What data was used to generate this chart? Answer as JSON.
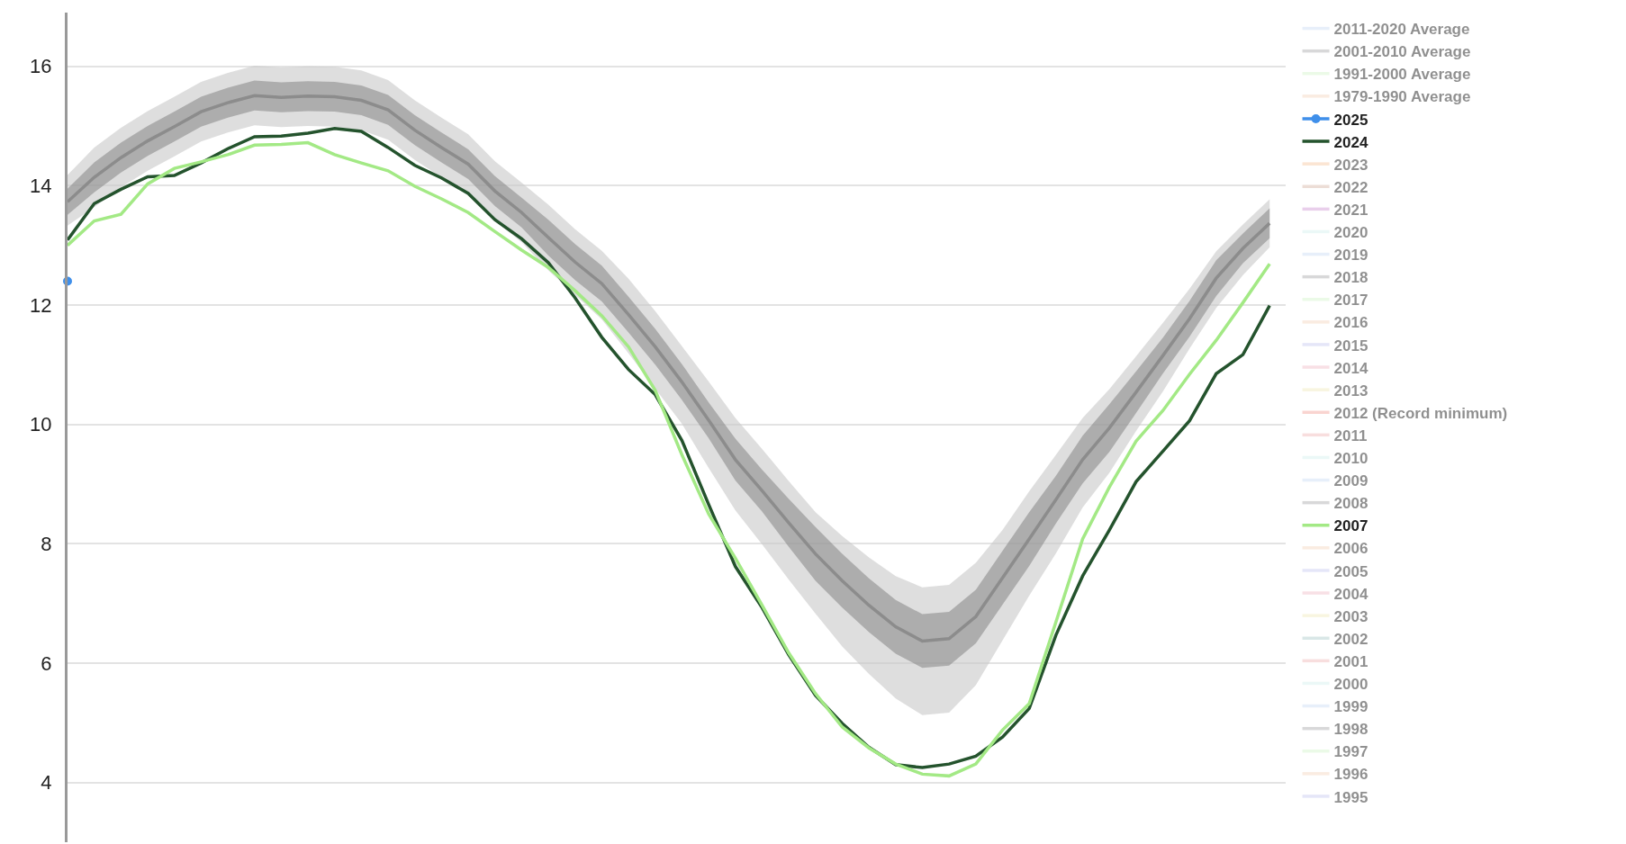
{
  "chart_data": {
    "type": "line",
    "categories": [
      null,
      null,
      null,
      null,
      null,
      null,
      null,
      null,
      null,
      null,
      null,
      null,
      null,
      null,
      null,
      null,
      null,
      null,
      null,
      null,
      null,
      null,
      null,
      null,
      null,
      null,
      null,
      null,
      null,
      null,
      null,
      null,
      null,
      null,
      null,
      null,
      null,
      null,
      null,
      null,
      null,
      null,
      null,
      null,
      null,
      null
    ],
    "ylim": [
      3,
      16.9
    ],
    "yticks": [
      4,
      6,
      8,
      10,
      12,
      14,
      16
    ],
    "tick_labels": "y",
    "grid": "y",
    "legend": "right",
    "series": [
      {
        "name": "2011-2020 Average",
        "color": "#cfe0f5",
        "values": [
          null,
          null,
          null,
          null,
          null,
          null,
          null,
          null,
          null,
          null,
          null,
          null,
          null,
          null,
          null,
          null,
          null,
          null,
          null,
          null,
          null,
          null,
          null,
          null,
          null,
          null,
          null,
          null,
          null,
          null,
          null,
          null,
          null,
          null,
          null,
          null,
          null,
          null,
          null,
          null,
          null,
          null,
          null,
          null,
          null,
          null
        ]
      },
      {
        "name": "2001-2010 Average",
        "color": "#b2b2b4",
        "values": [
          null,
          null,
          null,
          null,
          null,
          null,
          null,
          null,
          null,
          null,
          null,
          null,
          null,
          null,
          null,
          null,
          null,
          null,
          null,
          null,
          null,
          null,
          null,
          null,
          null,
          null,
          null,
          null,
          null,
          null,
          null,
          null,
          null,
          null,
          null,
          null,
          null,
          null,
          null,
          null,
          null,
          null,
          null,
          null,
          null,
          null
        ]
      },
      {
        "name": "1991-2000 Average",
        "color": "#d8f5d0",
        "values": [
          null,
          null,
          null,
          null,
          null,
          null,
          null,
          null,
          null,
          null,
          null,
          null,
          null,
          null,
          null,
          null,
          null,
          null,
          null,
          null,
          null,
          null,
          null,
          null,
          null,
          null,
          null,
          null,
          null,
          null,
          null,
          null,
          null,
          null,
          null,
          null,
          null,
          null,
          null,
          null,
          null,
          null,
          null,
          null,
          null,
          null
        ]
      },
      {
        "name": "1979-1990 Average",
        "color": "#f5d9c3",
        "values": [
          null,
          null,
          null,
          null,
          null,
          null,
          null,
          null,
          null,
          null,
          null,
          null,
          null,
          null,
          null,
          null,
          null,
          null,
          null,
          null,
          null,
          null,
          null,
          null,
          null,
          null,
          null,
          null,
          null,
          null,
          null,
          null,
          null,
          null,
          null,
          null,
          null,
          null,
          null,
          null,
          null,
          null,
          null,
          null,
          null,
          null
        ]
      },
      {
        "name": "2025",
        "color": "#3f8fea",
        "marker": "circle",
        "values": [
          12.4,
          null,
          null,
          null,
          null,
          null,
          null,
          null,
          null,
          null,
          null,
          null,
          null,
          null,
          null,
          null,
          null,
          null,
          null,
          null,
          null,
          null,
          null,
          null,
          null,
          null,
          null,
          null,
          null,
          null,
          null,
          null,
          null,
          null,
          null,
          null,
          null,
          null,
          null,
          null,
          null,
          null,
          null,
          null,
          null,
          null
        ]
      },
      {
        "name": "2024",
        "color": "#24532d",
        "values": [
          13.09,
          13.7,
          13.94,
          14.15,
          14.17,
          14.38,
          14.62,
          14.82,
          14.83,
          14.88,
          14.96,
          14.91,
          14.64,
          14.34,
          14.13,
          13.87,
          13.43,
          13.11,
          12.71,
          12.12,
          11.46,
          10.92,
          10.5,
          9.73,
          8.66,
          7.62,
          6.93,
          6.14,
          5.46,
          4.99,
          4.59,
          4.3,
          4.25,
          4.31,
          4.44,
          4.76,
          5.24,
          6.47,
          7.46,
          8.23,
          9.04,
          9.55,
          10.06,
          10.85,
          11.17,
          11.99
        ]
      },
      {
        "name": "2023",
        "color": "#f8cba8",
        "values": [
          null,
          null,
          null,
          null,
          null,
          null,
          null,
          null,
          null,
          null,
          null,
          null,
          null,
          null,
          null,
          null,
          null,
          null,
          null,
          null,
          null,
          null,
          null,
          null,
          null,
          null,
          null,
          null,
          null,
          null,
          null,
          null,
          null,
          null,
          null,
          null,
          null,
          null,
          null,
          null,
          null,
          null,
          null,
          null,
          null,
          null
        ]
      },
      {
        "name": "2022",
        "color": "#d9bcae",
        "values": [
          null,
          null,
          null,
          null,
          null,
          null,
          null,
          null,
          null,
          null,
          null,
          null,
          null,
          null,
          null,
          null,
          null,
          null,
          null,
          null,
          null,
          null,
          null,
          null,
          null,
          null,
          null,
          null,
          null,
          null,
          null,
          null,
          null,
          null,
          null,
          null,
          null,
          null,
          null,
          null,
          null,
          null,
          null,
          null,
          null,
          null
        ]
      },
      {
        "name": "2021",
        "color": "#d49fd8",
        "values": [
          null,
          null,
          null,
          null,
          null,
          null,
          null,
          null,
          null,
          null,
          null,
          null,
          null,
          null,
          null,
          null,
          null,
          null,
          null,
          null,
          null,
          null,
          null,
          null,
          null,
          null,
          null,
          null,
          null,
          null,
          null,
          null,
          null,
          null,
          null,
          null,
          null,
          null,
          null,
          null,
          null,
          null,
          null,
          null,
          null,
          null
        ]
      },
      {
        "name": "2020",
        "color": "#d7f2ef",
        "values": [
          null,
          null,
          null,
          null,
          null,
          null,
          null,
          null,
          null,
          null,
          null,
          null,
          null,
          null,
          null,
          null,
          null,
          null,
          null,
          null,
          null,
          null,
          null,
          null,
          null,
          null,
          null,
          null,
          null,
          null,
          null,
          null,
          null,
          null,
          null,
          null,
          null,
          null,
          null,
          null,
          null,
          null,
          null,
          null,
          null,
          null
        ]
      },
      {
        "name": "2019",
        "color": "#cfe0f5",
        "values": [
          null,
          null,
          null,
          null,
          null,
          null,
          null,
          null,
          null,
          null,
          null,
          null,
          null,
          null,
          null,
          null,
          null,
          null,
          null,
          null,
          null,
          null,
          null,
          null,
          null,
          null,
          null,
          null,
          null,
          null,
          null,
          null,
          null,
          null,
          null,
          null,
          null,
          null,
          null,
          null,
          null,
          null,
          null,
          null,
          null,
          null
        ]
      },
      {
        "name": "2018",
        "color": "#b2b2b4",
        "values": [
          null,
          null,
          null,
          null,
          null,
          null,
          null,
          null,
          null,
          null,
          null,
          null,
          null,
          null,
          null,
          null,
          null,
          null,
          null,
          null,
          null,
          null,
          null,
          null,
          null,
          null,
          null,
          null,
          null,
          null,
          null,
          null,
          null,
          null,
          null,
          null,
          null,
          null,
          null,
          null,
          null,
          null,
          null,
          null,
          null,
          null
        ]
      },
      {
        "name": "2017",
        "color": "#d8f5d0",
        "values": [
          null,
          null,
          null,
          null,
          null,
          null,
          null,
          null,
          null,
          null,
          null,
          null,
          null,
          null,
          null,
          null,
          null,
          null,
          null,
          null,
          null,
          null,
          null,
          null,
          null,
          null,
          null,
          null,
          null,
          null,
          null,
          null,
          null,
          null,
          null,
          null,
          null,
          null,
          null,
          null,
          null,
          null,
          null,
          null,
          null,
          null
        ]
      },
      {
        "name": "2016",
        "color": "#f5d9c3",
        "values": [
          null,
          null,
          null,
          null,
          null,
          null,
          null,
          null,
          null,
          null,
          null,
          null,
          null,
          null,
          null,
          null,
          null,
          null,
          null,
          null,
          null,
          null,
          null,
          null,
          null,
          null,
          null,
          null,
          null,
          null,
          null,
          null,
          null,
          null,
          null,
          null,
          null,
          null,
          null,
          null,
          null,
          null,
          null,
          null,
          null,
          null
        ]
      },
      {
        "name": "2015",
        "color": "#cccdf2",
        "values": [
          null,
          null,
          null,
          null,
          null,
          null,
          null,
          null,
          null,
          null,
          null,
          null,
          null,
          null,
          null,
          null,
          null,
          null,
          null,
          null,
          null,
          null,
          null,
          null,
          null,
          null,
          null,
          null,
          null,
          null,
          null,
          null,
          null,
          null,
          null,
          null,
          null,
          null,
          null,
          null,
          null,
          null,
          null,
          null,
          null,
          null
        ]
      },
      {
        "name": "2014",
        "color": "#f2c1cc",
        "values": [
          null,
          null,
          null,
          null,
          null,
          null,
          null,
          null,
          null,
          null,
          null,
          null,
          null,
          null,
          null,
          null,
          null,
          null,
          null,
          null,
          null,
          null,
          null,
          null,
          null,
          null,
          null,
          null,
          null,
          null,
          null,
          null,
          null,
          null,
          null,
          null,
          null,
          null,
          null,
          null,
          null,
          null,
          null,
          null,
          null,
          null
        ]
      },
      {
        "name": "2013",
        "color": "#f2ecc2",
        "values": [
          null,
          null,
          null,
          null,
          null,
          null,
          null,
          null,
          null,
          null,
          null,
          null,
          null,
          null,
          null,
          null,
          null,
          null,
          null,
          null,
          null,
          null,
          null,
          null,
          null,
          null,
          null,
          null,
          null,
          null,
          null,
          null,
          null,
          null,
          null,
          null,
          null,
          null,
          null,
          null,
          null,
          null,
          null,
          null,
          null,
          null
        ]
      },
      {
        "name": "2012 (Record minimum)",
        "color": "#f4a9a1",
        "values": [
          null,
          null,
          null,
          null,
          null,
          null,
          null,
          null,
          null,
          null,
          null,
          null,
          null,
          null,
          null,
          null,
          null,
          null,
          null,
          null,
          null,
          null,
          null,
          null,
          null,
          null,
          null,
          null,
          null,
          null,
          null,
          null,
          null,
          null,
          null,
          null,
          null,
          null,
          null,
          null,
          null,
          null,
          null,
          null,
          null,
          null
        ]
      },
      {
        "name": "2011",
        "color": "#f2bebe",
        "values": [
          null,
          null,
          null,
          null,
          null,
          null,
          null,
          null,
          null,
          null,
          null,
          null,
          null,
          null,
          null,
          null,
          null,
          null,
          null,
          null,
          null,
          null,
          null,
          null,
          null,
          null,
          null,
          null,
          null,
          null,
          null,
          null,
          null,
          null,
          null,
          null,
          null,
          null,
          null,
          null,
          null,
          null,
          null,
          null,
          null,
          null
        ]
      },
      {
        "name": "2010",
        "color": "#d7f2ef",
        "values": [
          null,
          null,
          null,
          null,
          null,
          null,
          null,
          null,
          null,
          null,
          null,
          null,
          null,
          null,
          null,
          null,
          null,
          null,
          null,
          null,
          null,
          null,
          null,
          null,
          null,
          null,
          null,
          null,
          null,
          null,
          null,
          null,
          null,
          null,
          null,
          null,
          null,
          null,
          null,
          null,
          null,
          null,
          null,
          null,
          null,
          null
        ]
      },
      {
        "name": "2009",
        "color": "#cfe0f5",
        "values": [
          null,
          null,
          null,
          null,
          null,
          null,
          null,
          null,
          null,
          null,
          null,
          null,
          null,
          null,
          null,
          null,
          null,
          null,
          null,
          null,
          null,
          null,
          null,
          null,
          null,
          null,
          null,
          null,
          null,
          null,
          null,
          null,
          null,
          null,
          null,
          null,
          null,
          null,
          null,
          null,
          null,
          null,
          null,
          null,
          null,
          null
        ]
      },
      {
        "name": "2008",
        "color": "#b2b2b4",
        "values": [
          null,
          null,
          null,
          null,
          null,
          null,
          null,
          null,
          null,
          null,
          null,
          null,
          null,
          null,
          null,
          null,
          null,
          null,
          null,
          null,
          null,
          null,
          null,
          null,
          null,
          null,
          null,
          null,
          null,
          null,
          null,
          null,
          null,
          null,
          null,
          null,
          null,
          null,
          null,
          null,
          null,
          null,
          null,
          null,
          null,
          null
        ]
      },
      {
        "name": "2007",
        "color": "#a3e985",
        "values": [
          13.0,
          13.41,
          13.52,
          14.03,
          14.29,
          14.4,
          14.52,
          14.68,
          14.69,
          14.72,
          14.52,
          14.38,
          14.25,
          13.99,
          13.78,
          13.55,
          13.23,
          12.92,
          12.63,
          12.24,
          11.82,
          11.3,
          10.57,
          9.49,
          8.5,
          7.76,
          6.97,
          6.17,
          5.49,
          4.93,
          4.58,
          4.31,
          4.14,
          4.11,
          4.31,
          4.88,
          5.32,
          6.69,
          8.08,
          8.95,
          9.72,
          10.23,
          10.84,
          11.41,
          12.04,
          12.69
        ]
      },
      {
        "name": "2006",
        "color": "#f5d9c3",
        "values": [
          null,
          null,
          null,
          null,
          null,
          null,
          null,
          null,
          null,
          null,
          null,
          null,
          null,
          null,
          null,
          null,
          null,
          null,
          null,
          null,
          null,
          null,
          null,
          null,
          null,
          null,
          null,
          null,
          null,
          null,
          null,
          null,
          null,
          null,
          null,
          null,
          null,
          null,
          null,
          null,
          null,
          null,
          null,
          null,
          null,
          null
        ]
      },
      {
        "name": "2005",
        "color": "#cccdf2",
        "values": [
          null,
          null,
          null,
          null,
          null,
          null,
          null,
          null,
          null,
          null,
          null,
          null,
          null,
          null,
          null,
          null,
          null,
          null,
          null,
          null,
          null,
          null,
          null,
          null,
          null,
          null,
          null,
          null,
          null,
          null,
          null,
          null,
          null,
          null,
          null,
          null,
          null,
          null,
          null,
          null,
          null,
          null,
          null,
          null,
          null,
          null
        ]
      },
      {
        "name": "2004",
        "color": "#f2c1cc",
        "values": [
          null,
          null,
          null,
          null,
          null,
          null,
          null,
          null,
          null,
          null,
          null,
          null,
          null,
          null,
          null,
          null,
          null,
          null,
          null,
          null,
          null,
          null,
          null,
          null,
          null,
          null,
          null,
          null,
          null,
          null,
          null,
          null,
          null,
          null,
          null,
          null,
          null,
          null,
          null,
          null,
          null,
          null,
          null,
          null,
          null,
          null
        ]
      },
      {
        "name": "2003",
        "color": "#f2ecc2",
        "values": [
          null,
          null,
          null,
          null,
          null,
          null,
          null,
          null,
          null,
          null,
          null,
          null,
          null,
          null,
          null,
          null,
          null,
          null,
          null,
          null,
          null,
          null,
          null,
          null,
          null,
          null,
          null,
          null,
          null,
          null,
          null,
          null,
          null,
          null,
          null,
          null,
          null,
          null,
          null,
          null,
          null,
          null,
          null,
          null,
          null,
          null
        ]
      },
      {
        "name": "2002",
        "color": "#b4d0cf",
        "values": [
          null,
          null,
          null,
          null,
          null,
          null,
          null,
          null,
          null,
          null,
          null,
          null,
          null,
          null,
          null,
          null,
          null,
          null,
          null,
          null,
          null,
          null,
          null,
          null,
          null,
          null,
          null,
          null,
          null,
          null,
          null,
          null,
          null,
          null,
          null,
          null,
          null,
          null,
          null,
          null,
          null,
          null,
          null,
          null,
          null,
          null
        ]
      },
      {
        "name": "2001",
        "color": "#f2bebe",
        "values": [
          null,
          null,
          null,
          null,
          null,
          null,
          null,
          null,
          null,
          null,
          null,
          null,
          null,
          null,
          null,
          null,
          null,
          null,
          null,
          null,
          null,
          null,
          null,
          null,
          null,
          null,
          null,
          null,
          null,
          null,
          null,
          null,
          null,
          null,
          null,
          null,
          null,
          null,
          null,
          null,
          null,
          null,
          null,
          null,
          null,
          null
        ]
      },
      {
        "name": "2000",
        "color": "#d7f2ef",
        "values": [
          null,
          null,
          null,
          null,
          null,
          null,
          null,
          null,
          null,
          null,
          null,
          null,
          null,
          null,
          null,
          null,
          null,
          null,
          null,
          null,
          null,
          null,
          null,
          null,
          null,
          null,
          null,
          null,
          null,
          null,
          null,
          null,
          null,
          null,
          null,
          null,
          null,
          null,
          null,
          null,
          null,
          null,
          null,
          null,
          null,
          null
        ]
      },
      {
        "name": "1999",
        "color": "#cfe0f5",
        "values": [
          null,
          null,
          null,
          null,
          null,
          null,
          null,
          null,
          null,
          null,
          null,
          null,
          null,
          null,
          null,
          null,
          null,
          null,
          null,
          null,
          null,
          null,
          null,
          null,
          null,
          null,
          null,
          null,
          null,
          null,
          null,
          null,
          null,
          null,
          null,
          null,
          null,
          null,
          null,
          null,
          null,
          null,
          null,
          null,
          null,
          null
        ]
      },
      {
        "name": "1998",
        "color": "#b2b2b4",
        "values": [
          null,
          null,
          null,
          null,
          null,
          null,
          null,
          null,
          null,
          null,
          null,
          null,
          null,
          null,
          null,
          null,
          null,
          null,
          null,
          null,
          null,
          null,
          null,
          null,
          null,
          null,
          null,
          null,
          null,
          null,
          null,
          null,
          null,
          null,
          null,
          null,
          null,
          null,
          null,
          null,
          null,
          null,
          null,
          null,
          null,
          null
        ]
      },
      {
        "name": "1997",
        "color": "#d8f5d0",
        "values": [
          null,
          null,
          null,
          null,
          null,
          null,
          null,
          null,
          null,
          null,
          null,
          null,
          null,
          null,
          null,
          null,
          null,
          null,
          null,
          null,
          null,
          null,
          null,
          null,
          null,
          null,
          null,
          null,
          null,
          null,
          null,
          null,
          null,
          null,
          null,
          null,
          null,
          null,
          null,
          null,
          null,
          null,
          null,
          null,
          null,
          null
        ]
      },
      {
        "name": "1996",
        "color": "#f5d9c3",
        "values": [
          null,
          null,
          null,
          null,
          null,
          null,
          null,
          null,
          null,
          null,
          null,
          null,
          null,
          null,
          null,
          null,
          null,
          null,
          null,
          null,
          null,
          null,
          null,
          null,
          null,
          null,
          null,
          null,
          null,
          null,
          null,
          null,
          null,
          null,
          null,
          null,
          null,
          null,
          null,
          null,
          null,
          null,
          null,
          null,
          null,
          null
        ]
      },
      {
        "name": "1995",
        "color": "#cccdf2",
        "values": [
          null,
          null,
          null,
          null,
          null,
          null,
          null,
          null,
          null,
          null,
          null,
          null,
          null,
          null,
          null,
          null,
          null,
          null,
          null,
          null,
          null,
          null,
          null,
          null,
          null,
          null,
          null,
          null,
          null,
          null,
          null,
          null,
          null,
          null,
          null,
          null,
          null,
          null,
          null,
          null,
          null,
          null,
          null,
          null,
          null,
          null
        ]
      },
      {
        "color": "#c8c8c8",
        "values": [
          null,
          null,
          null,
          null,
          null,
          null,
          null,
          null,
          null,
          null,
          null,
          null,
          null,
          null,
          null,
          null,
          null,
          null,
          null,
          null,
          null,
          null,
          null,
          null,
          null,
          null,
          null,
          null,
          null,
          null,
          null,
          null,
          null,
          null,
          null,
          null,
          null,
          null,
          null,
          null,
          null,
          null,
          null,
          null,
          null,
          null
        ],
        "lower": [
          13.33,
          13.64,
          13.97,
          14.25,
          14.49,
          14.74,
          14.89,
          15.01,
          14.98,
          15.0,
          14.99,
          14.93,
          14.77,
          14.43,
          14.14,
          13.86,
          13.41,
          13.05,
          12.58,
          12.17,
          11.76,
          11.19,
          10.6,
          10.01,
          9.27,
          8.56,
          7.99,
          7.4,
          6.83,
          6.28,
          5.82,
          5.41,
          5.13,
          5.17,
          5.63,
          6.38,
          7.13,
          7.84,
          8.61,
          9.19,
          9.89,
          10.55,
          11.27,
          11.95,
          12.5,
          12.97
        ],
        "upper": [
          14.18,
          14.64,
          14.97,
          15.25,
          15.49,
          15.74,
          15.89,
          16.01,
          15.98,
          16.0,
          15.99,
          15.93,
          15.77,
          15.43,
          15.14,
          14.86,
          14.41,
          14.05,
          13.68,
          13.27,
          12.91,
          12.44,
          11.9,
          11.31,
          10.72,
          10.11,
          9.59,
          9.05,
          8.53,
          8.13,
          7.77,
          7.46,
          7.27,
          7.31,
          7.68,
          8.23,
          8.88,
          9.49,
          10.11,
          10.59,
          11.14,
          11.7,
          12.27,
          12.9,
          13.35,
          13.77
        ]
      },
      {
        "color": "#8c8c8c",
        "values": [
          13.73,
          14.14,
          14.47,
          14.75,
          14.99,
          15.24,
          15.39,
          15.51,
          15.48,
          15.5,
          15.49,
          15.43,
          15.27,
          14.93,
          14.64,
          14.36,
          13.91,
          13.55,
          13.13,
          12.72,
          12.36,
          11.84,
          11.3,
          10.71,
          10.07,
          9.41,
          8.89,
          8.35,
          7.83,
          7.38,
          6.97,
          6.61,
          6.37,
          6.41,
          6.78,
          7.43,
          8.08,
          8.74,
          9.41,
          9.94,
          10.54,
          11.15,
          11.77,
          12.45,
          12.95,
          13.37
        ],
        "lower": [
          13.51,
          13.89,
          14.22,
          14.5,
          14.74,
          14.99,
          15.14,
          15.26,
          15.23,
          15.25,
          15.24,
          15.18,
          15.02,
          14.68,
          14.39,
          14.11,
          13.66,
          13.3,
          12.83,
          12.42,
          12.06,
          11.54,
          11.0,
          10.41,
          9.77,
          9.06,
          8.54,
          7.95,
          7.38,
          6.93,
          6.52,
          6.16,
          5.92,
          5.96,
          6.33,
          6.98,
          7.63,
          8.34,
          9.01,
          9.54,
          10.19,
          10.85,
          11.47,
          12.15,
          12.7,
          13.12
        ],
        "upper": [
          13.95,
          14.39,
          14.72,
          15.0,
          15.24,
          15.49,
          15.64,
          15.76,
          15.73,
          15.75,
          15.74,
          15.68,
          15.52,
          15.18,
          14.89,
          14.61,
          14.16,
          13.8,
          13.43,
          13.02,
          12.66,
          12.14,
          11.6,
          11.01,
          10.37,
          9.76,
          9.24,
          8.75,
          8.28,
          7.83,
          7.42,
          7.06,
          6.82,
          6.86,
          7.23,
          7.88,
          8.53,
          9.14,
          9.81,
          10.34,
          10.89,
          11.45,
          12.07,
          12.75,
          13.2,
          13.62
        ]
      }
    ]
  }
}
